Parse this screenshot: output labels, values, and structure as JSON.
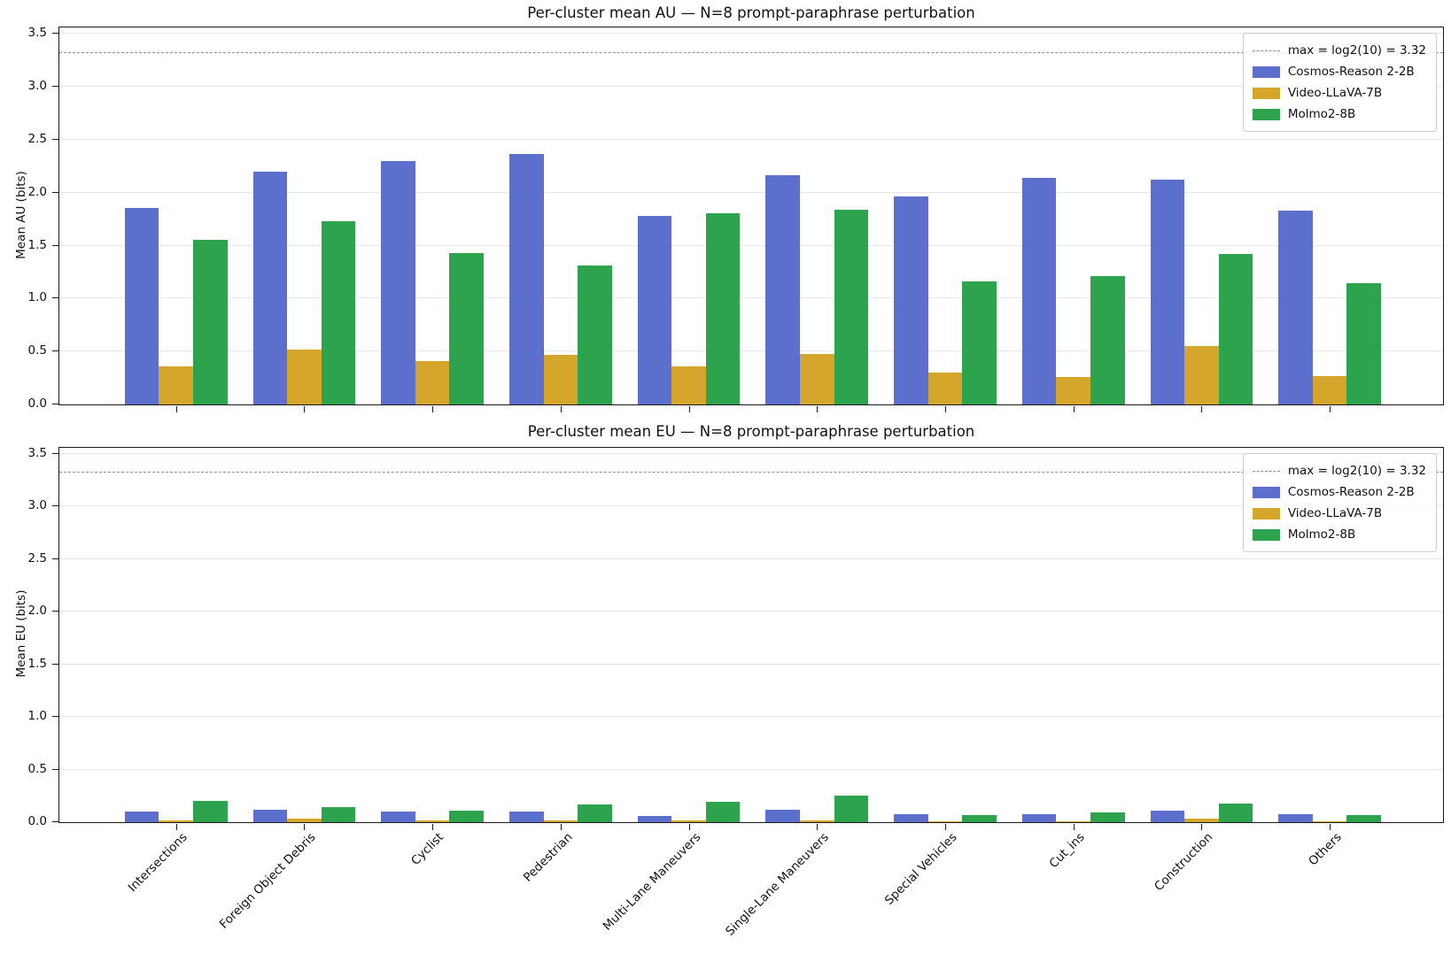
{
  "chart_data": [
    {
      "type": "bar",
      "title": "Per-cluster mean AU — N=8 prompt-paraphrase perturbation",
      "xlabel": "",
      "ylabel": "Mean AU (bits)",
      "categories": [
        "Intersections",
        "Foreign Object Debris",
        "Cyclist",
        "Pedestrian",
        "Multi-Lane Maneuvers",
        "Single-Lane Maneuvers",
        "Special Vehicles",
        "Cut_ins",
        "Construction",
        "Others"
      ],
      "series": [
        {
          "name": "Cosmos-Reason 2-2B",
          "color": "#5d6fcc",
          "values": [
            1.85,
            2.2,
            2.3,
            2.36,
            1.78,
            2.16,
            1.96,
            2.14,
            2.12,
            1.83
          ]
        },
        {
          "name": "Video-LLaVA-7B",
          "color": "#d4a62b",
          "values": [
            0.36,
            0.52,
            0.41,
            0.47,
            0.36,
            0.48,
            0.3,
            0.26,
            0.55,
            0.27
          ]
        },
        {
          "name": "Molmo2-8B",
          "color": "#2ea34e",
          "values": [
            1.55,
            1.73,
            1.43,
            1.31,
            1.8,
            1.84,
            1.16,
            1.21,
            1.42,
            1.14
          ]
        }
      ],
      "reference_line": {
        "label": "max = log2(10) = 3.32",
        "value": 3.32
      },
      "ylim": [
        0,
        3.55
      ],
      "yticks": [
        0.0,
        0.5,
        1.0,
        1.5,
        2.0,
        2.5,
        3.0,
        3.5
      ],
      "grid": true,
      "legend_position": "upper right",
      "show_x_labels": false
    },
    {
      "type": "bar",
      "title": "Per-cluster mean EU — N=8 prompt-paraphrase perturbation",
      "xlabel": "",
      "ylabel": "Mean EU (bits)",
      "categories": [
        "Intersections",
        "Foreign Object Debris",
        "Cyclist",
        "Pedestrian",
        "Multi-Lane Maneuvers",
        "Single-Lane Maneuvers",
        "Special Vehicles",
        "Cut_ins",
        "Construction",
        "Others"
      ],
      "series": [
        {
          "name": "Cosmos-Reason 2-2B",
          "color": "#5d6fcc",
          "values": [
            0.1,
            0.12,
            0.1,
            0.1,
            0.06,
            0.12,
            0.08,
            0.08,
            0.11,
            0.08
          ]
        },
        {
          "name": "Video-LLaVA-7B",
          "color": "#d4a62b",
          "values": [
            0.02,
            0.03,
            0.02,
            0.02,
            0.02,
            0.02,
            0.01,
            0.01,
            0.03,
            0.01
          ]
        },
        {
          "name": "Molmo2-8B",
          "color": "#2ea34e",
          "values": [
            0.2,
            0.14,
            0.11,
            0.17,
            0.19,
            0.25,
            0.07,
            0.09,
            0.18,
            0.07
          ]
        }
      ],
      "reference_line": {
        "label": "max = log2(10) = 3.32",
        "value": 3.32
      },
      "ylim": [
        0,
        3.55
      ],
      "yticks": [
        0.0,
        0.5,
        1.0,
        1.5,
        2.0,
        2.5,
        3.0,
        3.5
      ],
      "grid": true,
      "legend_position": "upper right",
      "show_x_labels": true
    }
  ]
}
